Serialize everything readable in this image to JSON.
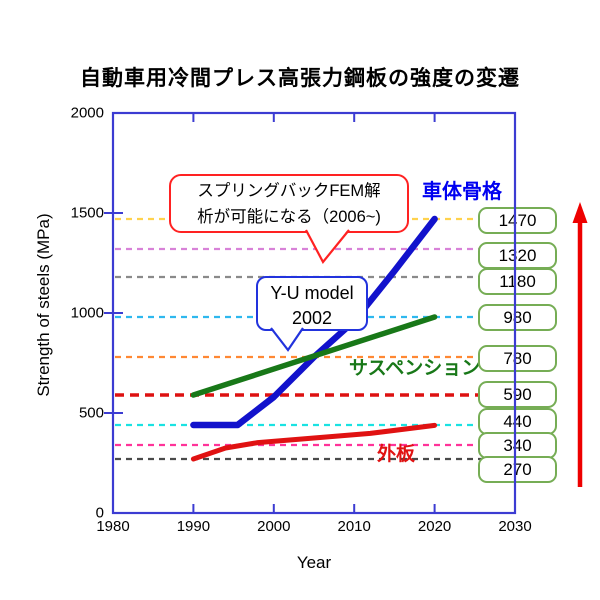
{
  "chart_data": {
    "type": "line",
    "title": "自動車用冷間プレス高張力鋼板の強度の変遷",
    "xlabel": "Year",
    "ylabel": "Strength of steels (MPa)",
    "xlim": [
      1980,
      2030
    ],
    "ylim": [
      0,
      2000
    ],
    "xtick_labels": [
      "1980",
      "1990",
      "2000",
      "2010",
      "2020",
      "2030"
    ],
    "xtick_values": [
      1980,
      1990,
      2000,
      2010,
      2020,
      2030
    ],
    "ytick_labels": [
      "0",
      "500",
      "1000",
      "1500",
      "2000"
    ],
    "ytick_values": [
      0,
      500,
      1000,
      1500,
      2000
    ],
    "grid": false,
    "frame_color": "#3c3cd2",
    "series": [
      {
        "name": "車体骨格",
        "color": "#1212cc",
        "width": 6.5,
        "points": [
          [
            1990,
            440
          ],
          [
            1995.5,
            440
          ],
          [
            2000,
            580
          ],
          [
            2005,
            780
          ],
          [
            2010,
            960
          ],
          [
            2015,
            1210
          ],
          [
            2020,
            1470
          ]
        ]
      },
      {
        "name": "サスペンション",
        "color": "#187818",
        "width": 5.5,
        "points": [
          [
            1990,
            590
          ],
          [
            2020,
            980
          ]
        ]
      },
      {
        "name": "外板",
        "color": "#e01212",
        "width": 5,
        "points": [
          [
            1990,
            270
          ],
          [
            1994,
            325
          ],
          [
            1998,
            352
          ],
          [
            2005,
            375
          ],
          [
            2012,
            398
          ],
          [
            2020,
            438
          ]
        ]
      }
    ],
    "threshold_lines": [
      {
        "value": 1470,
        "color": "#ffd24d",
        "thick": false
      },
      {
        "value": 1320,
        "color": "#d882d8",
        "thick": false
      },
      {
        "value": 1180,
        "color": "#8a8a8a",
        "thick": false
      },
      {
        "value": 980,
        "color": "#2eb8ee",
        "thick": false
      },
      {
        "value": 780,
        "color": "#ff8833",
        "thick": false
      },
      {
        "value": 590,
        "color": "#dd1111",
        "thick": true
      },
      {
        "value": 440,
        "color": "#1ae2e2",
        "thick": false
      },
      {
        "value": 340,
        "color": "#ff3399",
        "thick": false
      },
      {
        "value": 270,
        "color": "#4a4a4a",
        "thick": false
      }
    ],
    "value_labels": [
      "1470",
      "1320",
      "1180",
      "980",
      "780",
      "590",
      "440",
      "340",
      "270"
    ],
    "value_box_border_color": "#76ad55",
    "trend_arrow_color": "#ee0000"
  },
  "annotations": {
    "springback_note": {
      "line1": "スプリングバックFEM解",
      "line2": "析が可能になる（2006~)"
    },
    "yu_model": {
      "line1": "Y-U model",
      "line2": "2002"
    }
  },
  "series_labels": {
    "body_frame": "車体骨格",
    "suspension": "サスペンション",
    "outer_panel": "外板"
  }
}
